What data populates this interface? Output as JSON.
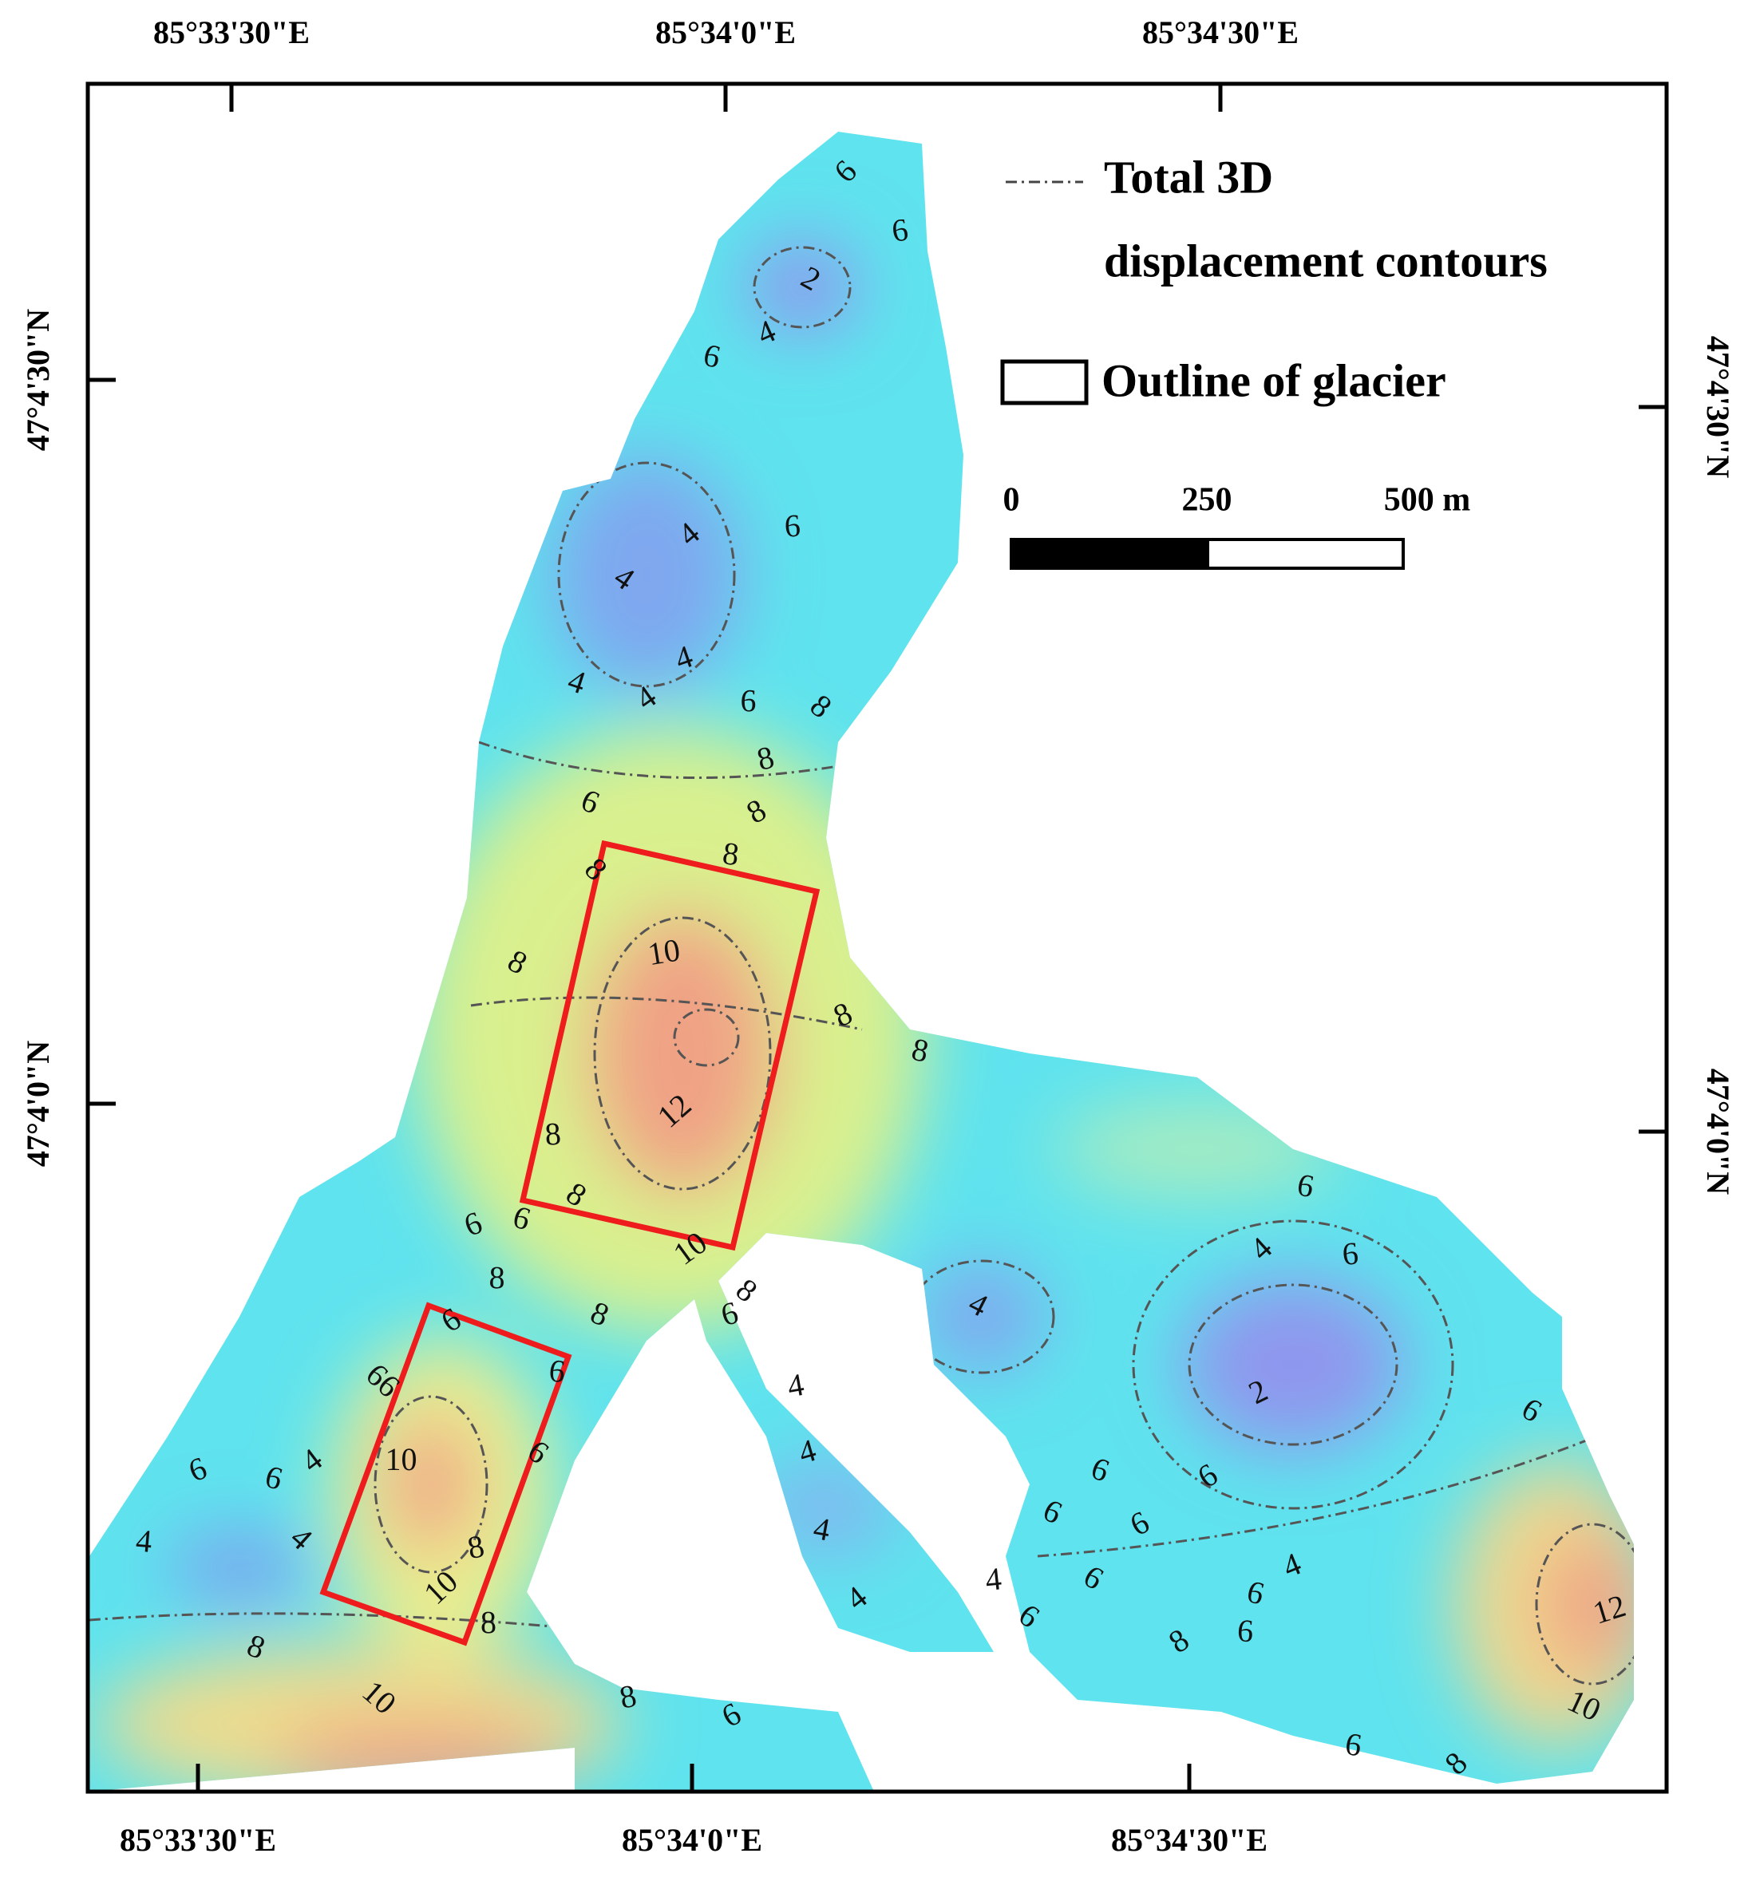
{
  "axes": {
    "top": [
      "85°33'30\"E",
      "85°34'0\"E",
      "85°34'30\"E"
    ],
    "bottom": [
      "85°33'30\"E",
      "85°34'0\"E",
      "85°34'30\"E"
    ],
    "left": [
      "47°4'30\"N",
      "47°4'0\"N"
    ],
    "right": [
      "47°4'30\"N",
      "47°4'0\"N"
    ]
  },
  "legend": {
    "contours_line1": "Total 3D",
    "contours_line2": "displacement contours",
    "outline": "Outline of glacier"
  },
  "scale_bar": {
    "labels": [
      "0",
      "250",
      "500 m"
    ]
  },
  "contour_labels": [
    "6",
    "6",
    "2",
    "4",
    "6",
    "4",
    "6",
    "4",
    "4",
    "4",
    "4",
    "6",
    "8",
    "8",
    "6",
    "8",
    "8",
    "8",
    "10",
    "8",
    "8",
    "8",
    "12",
    "8",
    "8",
    "6",
    "6",
    "10",
    "8",
    "8",
    "6",
    "8",
    "6",
    "6",
    "66",
    "4",
    "4",
    "2",
    "6",
    "4",
    "6",
    "6",
    "6",
    "6",
    "4",
    "10",
    "6",
    "4",
    "6",
    "6",
    "4",
    "4",
    "8",
    "6",
    "6",
    "4",
    "10",
    "4",
    "6",
    "4",
    "6",
    "4",
    "8",
    "6",
    "12",
    "8",
    "8",
    "6",
    "10",
    "8",
    "10",
    "6",
    "6",
    "8"
  ]
}
